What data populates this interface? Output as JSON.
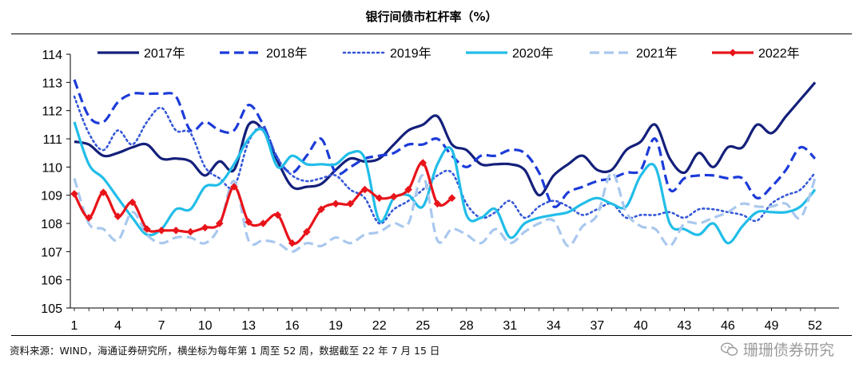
{
  "chart_data": {
    "type": "line",
    "title": "银行间债市杠杆率（%）",
    "xlabel": "",
    "ylabel": "",
    "x_ticks": [
      1,
      4,
      7,
      10,
      13,
      16,
      19,
      22,
      25,
      28,
      31,
      34,
      37,
      40,
      43,
      46,
      49,
      52
    ],
    "xlim": [
      1,
      52
    ],
    "ylim": [
      105,
      114
    ],
    "y_ticks": [
      105,
      106,
      107,
      108,
      109,
      110,
      111,
      112,
      113,
      114
    ],
    "grid": false,
    "legend_position": "top",
    "series": [
      {
        "name": "2017年",
        "color": "#14207a",
        "style": "solid",
        "marker": "none",
        "x": [
          1,
          2,
          3,
          4,
          5,
          6,
          7,
          8,
          9,
          10,
          11,
          12,
          13,
          14,
          15,
          16,
          17,
          18,
          19,
          20,
          21,
          22,
          23,
          24,
          25,
          26,
          27,
          28,
          29,
          30,
          31,
          32,
          33,
          34,
          35,
          36,
          37,
          38,
          39,
          40,
          41,
          42,
          43,
          44,
          45,
          46,
          47,
          48,
          49,
          50,
          51,
          52
        ],
        "values": [
          110.9,
          110.8,
          110.4,
          110.5,
          110.7,
          110.8,
          110.3,
          110.3,
          110.2,
          109.7,
          110.2,
          109.9,
          111.5,
          111.3,
          110.2,
          109.3,
          109.3,
          109.4,
          109.9,
          110.3,
          110.2,
          110.3,
          110.8,
          111.3,
          111.5,
          111.8,
          110.8,
          110.6,
          110.1,
          110.1,
          110.1,
          109.9,
          109.0,
          109.7,
          110.1,
          110.4,
          109.9,
          109.9,
          110.6,
          110.9,
          111.5,
          110.3,
          109.8,
          110.5,
          110.0,
          110.7,
          110.7,
          111.5,
          111.2,
          111.8,
          112.4,
          113.0
        ]
      },
      {
        "name": "2018年",
        "color": "#1c3bd9",
        "style": "dashed",
        "marker": "none",
        "x": [
          1,
          2,
          3,
          4,
          5,
          6,
          7,
          8,
          9,
          10,
          11,
          12,
          13,
          14,
          15,
          16,
          17,
          18,
          19,
          20,
          21,
          22,
          23,
          24,
          25,
          26,
          27,
          28,
          29,
          30,
          31,
          32,
          33,
          34,
          35,
          36,
          37,
          38,
          39,
          40,
          41,
          42,
          43,
          44,
          45,
          46,
          47,
          48,
          49,
          50,
          51,
          52
        ],
        "values": [
          113.1,
          111.8,
          111.6,
          112.3,
          112.6,
          112.6,
          112.6,
          112.5,
          111.3,
          111.6,
          111.3,
          111.3,
          112.2,
          111.5,
          110.3,
          109.8,
          110.4,
          111.0,
          109.8,
          110.0,
          110.3,
          110.4,
          110.5,
          110.8,
          110.8,
          111.0,
          110.4,
          110.0,
          110.4,
          110.4,
          110.6,
          110.5,
          109.8,
          108.6,
          109.1,
          109.3,
          109.5,
          109.6,
          109.8,
          109.9,
          111.0,
          109.2,
          109.6,
          109.7,
          109.7,
          109.6,
          109.6,
          108.9,
          109.3,
          109.9,
          110.7,
          110.3
        ]
      },
      {
        "name": "2019年",
        "color": "#3558d8",
        "style": "dotted",
        "marker": "none",
        "x": [
          1,
          2,
          3,
          4,
          5,
          6,
          7,
          8,
          9,
          10,
          11,
          12,
          13,
          14,
          15,
          16,
          17,
          18,
          19,
          20,
          21,
          22,
          23,
          24,
          25,
          26,
          27,
          28,
          29,
          30,
          31,
          32,
          33,
          34,
          35,
          36,
          37,
          38,
          39,
          40,
          41,
          42,
          43,
          44,
          45,
          46,
          47,
          48,
          49,
          50,
          51,
          52
        ],
        "values": [
          112.5,
          111.2,
          110.6,
          111.3,
          110.8,
          111.6,
          112.1,
          111.3,
          111.2,
          110.0,
          109.6,
          109.3,
          110.9,
          111.4,
          110.3,
          109.7,
          109.5,
          109.6,
          109.7,
          109.2,
          108.9,
          108.0,
          108.5,
          108.8,
          109.2,
          109.7,
          109.8,
          108.7,
          108.2,
          108.4,
          108.8,
          108.2,
          108.6,
          108.8,
          108.6,
          108.3,
          108.5,
          108.7,
          108.2,
          108.3,
          108.3,
          108.4,
          108.2,
          108.5,
          108.5,
          108.4,
          108.3,
          108.1,
          108.7,
          109.0,
          109.2,
          109.8
        ]
      },
      {
        "name": "2020年",
        "color": "#21bde8",
        "style": "solid",
        "marker": "none",
        "x": [
          1,
          2,
          3,
          4,
          5,
          6,
          7,
          8,
          9,
          10,
          11,
          12,
          13,
          14,
          15,
          16,
          17,
          18,
          19,
          20,
          21,
          22,
          23,
          24,
          25,
          26,
          27,
          28,
          29,
          30,
          31,
          32,
          33,
          34,
          35,
          36,
          37,
          38,
          39,
          40,
          41,
          42,
          43,
          44,
          45,
          46,
          47,
          48,
          49,
          50,
          51,
          52
        ],
        "values": [
          111.6,
          110.1,
          109.6,
          108.9,
          108.2,
          107.6,
          107.8,
          108.5,
          108.5,
          109.3,
          109.4,
          110.1,
          111.0,
          111.3,
          110.0,
          110.4,
          110.1,
          110.1,
          110.1,
          110.5,
          110.3,
          108.1,
          108.9,
          109.0,
          108.6,
          110.1,
          110.6,
          108.3,
          108.2,
          108.5,
          107.5,
          108.0,
          108.2,
          108.3,
          108.4,
          108.7,
          108.9,
          108.7,
          108.6,
          109.7,
          110.0,
          108.0,
          107.8,
          107.6,
          108.0,
          107.3,
          107.9,
          108.4,
          108.4,
          108.4,
          108.6,
          109.2
        ]
      },
      {
        "name": "2021年",
        "color": "#a9c8ee",
        "style": "dashed",
        "marker": "none",
        "x": [
          1,
          2,
          3,
          4,
          5,
          6,
          7,
          8,
          9,
          10,
          11,
          12,
          13,
          14,
          15,
          16,
          17,
          18,
          19,
          20,
          21,
          22,
          23,
          24,
          25,
          26,
          27,
          28,
          29,
          30,
          31,
          32,
          33,
          34,
          35,
          36,
          37,
          38,
          39,
          40,
          41,
          42,
          43,
          44,
          45,
          46,
          47,
          48,
          49,
          50,
          51,
          52
        ],
        "values": [
          109.6,
          108.0,
          107.8,
          107.4,
          108.4,
          107.6,
          107.3,
          107.5,
          107.5,
          107.3,
          107.9,
          109.5,
          107.4,
          107.4,
          107.3,
          107.0,
          107.3,
          107.2,
          107.5,
          107.3,
          107.6,
          107.7,
          108.0,
          108.0,
          109.7,
          107.4,
          107.8,
          107.6,
          107.3,
          107.8,
          107.3,
          107.7,
          108.0,
          108.1,
          107.2,
          107.9,
          108.3,
          109.8,
          108.4,
          107.9,
          107.8,
          107.2,
          108.0,
          108.0,
          108.2,
          108.4,
          108.7,
          108.6,
          108.6,
          108.7,
          108.2,
          109.6
        ]
      },
      {
        "name": "2022年",
        "color": "#e8141a",
        "style": "solid",
        "marker": "diamond",
        "x": [
          1,
          2,
          3,
          4,
          5,
          6,
          7,
          8,
          9,
          10,
          11,
          12,
          13,
          14,
          15,
          16,
          17,
          18,
          19,
          20,
          21,
          22,
          23,
          24,
          25,
          26,
          27
        ],
        "values": [
          109.05,
          108.2,
          109.1,
          108.25,
          108.75,
          107.8,
          107.75,
          107.75,
          107.7,
          107.85,
          108.0,
          109.3,
          108.05,
          108.0,
          108.3,
          107.3,
          107.7,
          108.5,
          108.7,
          108.7,
          109.2,
          108.9,
          108.95,
          109.2,
          110.15,
          108.7,
          108.9
        ]
      }
    ]
  },
  "footer": {
    "source": "资料来源：WIND，海通证券研究所，横坐标为每年第 1 周至 52 周，数据截至 22 年 7 月 15 日",
    "watermark": "珊珊债券研究"
  }
}
